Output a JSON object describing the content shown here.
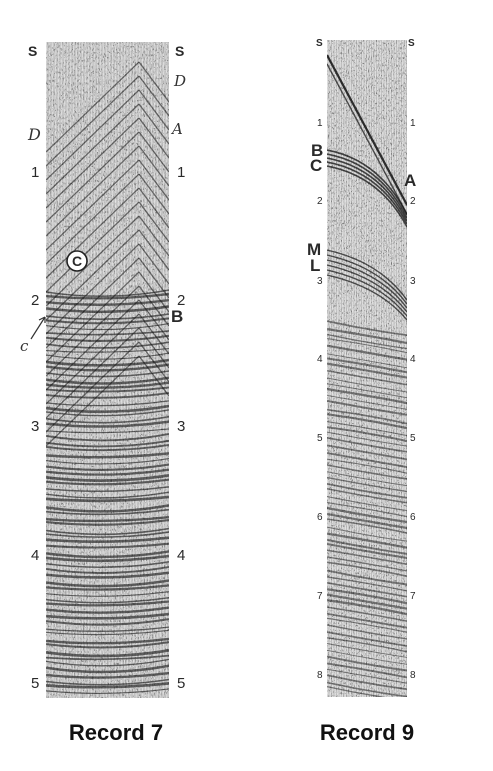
{
  "records": [
    {
      "id": "record-7",
      "caption": "Record 7",
      "time_ticks": [
        "1",
        "2",
        "3",
        "4",
        "5"
      ],
      "top_marks": {
        "left": "S",
        "right": "S"
      },
      "annotations": {
        "D_left": "D",
        "D_right": "D",
        "A": "A",
        "B": "B",
        "C_circle": "C",
        "C_hand": "c"
      }
    },
    {
      "id": "record-9",
      "caption": "Record 9",
      "time_ticks": [
        "1",
        "2",
        "3",
        "4",
        "5",
        "6",
        "7",
        "8"
      ],
      "top_marks": {
        "left": "S",
        "right": "S"
      },
      "annotations": {
        "A": "A",
        "B": "B",
        "C": "C",
        "M": "M",
        "L": "L"
      }
    }
  ]
}
